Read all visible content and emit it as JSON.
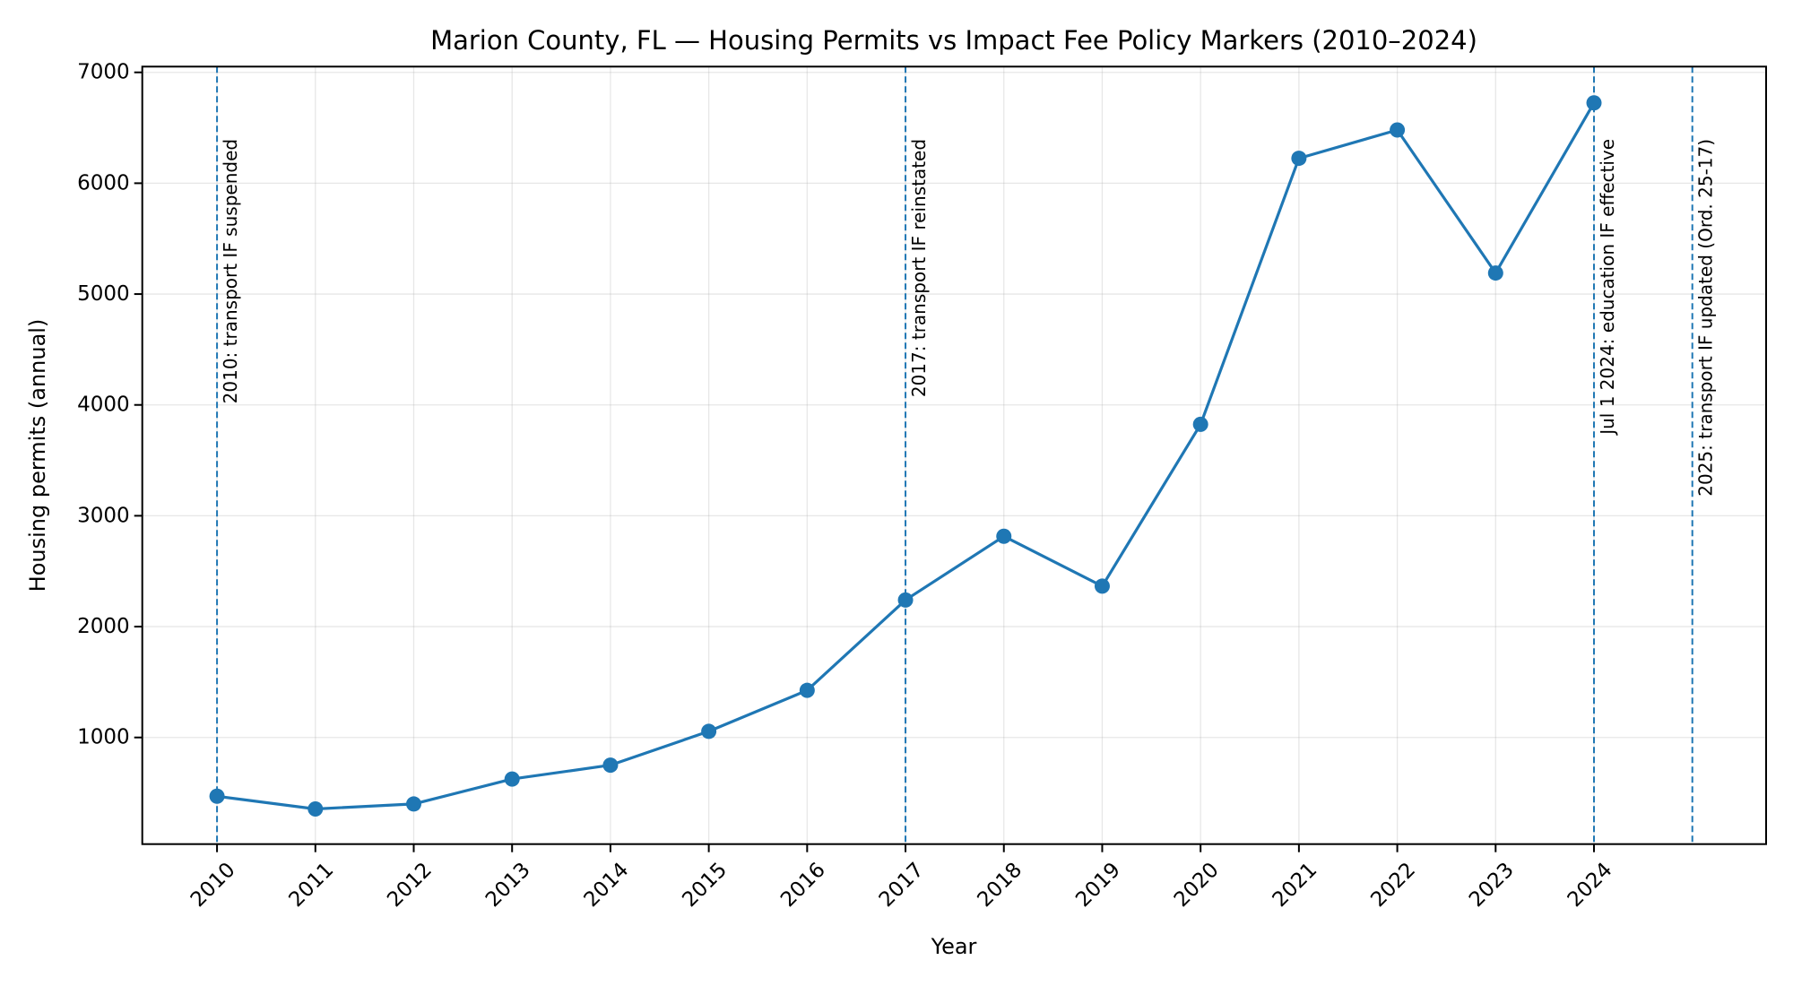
{
  "chart_data": {
    "type": "line",
    "title": "Marion County, FL — Housing Permits vs Impact Fee Policy Markers (2010–2024)",
    "xlabel": "Year",
    "ylabel": "Housing permits (annual)",
    "x": [
      2010,
      2011,
      2012,
      2013,
      2014,
      2015,
      2016,
      2017,
      2018,
      2019,
      2020,
      2021,
      2022,
      2023,
      2024
    ],
    "series": [
      {
        "name": "Housing permits",
        "color": "#1f77b4",
        "marker": "circle",
        "values": [
          470,
          355,
          400,
          625,
          750,
          1055,
          1425,
          2240,
          2815,
          2365,
          3825,
          6225,
          6480,
          5190,
          6725
        ]
      }
    ],
    "xticks": [
      "2010",
      "2011",
      "2012",
      "2013",
      "2014",
      "2015",
      "2016",
      "2017",
      "2018",
      "2019",
      "2020",
      "2021",
      "2022",
      "2023",
      "2024"
    ],
    "yticks": [
      "1000",
      "2000",
      "3000",
      "4000",
      "5000",
      "6000",
      "7000"
    ],
    "ytick_values": [
      1000,
      2000,
      3000,
      4000,
      5000,
      6000,
      7000
    ],
    "xlim": [
      2009.24,
      2025.75
    ],
    "ylim": [
      38,
      7052
    ],
    "grid": true,
    "legend": "none",
    "xtick_rotation_deg": 45,
    "annotations": [
      {
        "x": 2010,
        "label": "2010: transport IF suspended",
        "line_style": "dashed",
        "color": "#1f77b4",
        "text_top_value": 6400
      },
      {
        "x": 2017,
        "label": "2017: transport IF reinstated",
        "line_style": "dashed",
        "color": "#1f77b4",
        "text_top_value": 6400
      },
      {
        "x": 2024,
        "label": "Jul 1 2024: education IF effective",
        "line_style": "dashed",
        "color": "#1f77b4",
        "text_top_value": 6400
      },
      {
        "x": 2025,
        "label": "2025: transport IF updated (Ord. 25-17)",
        "line_style": "dashed",
        "color": "#1f77b4",
        "text_top_value": 6400
      }
    ]
  }
}
